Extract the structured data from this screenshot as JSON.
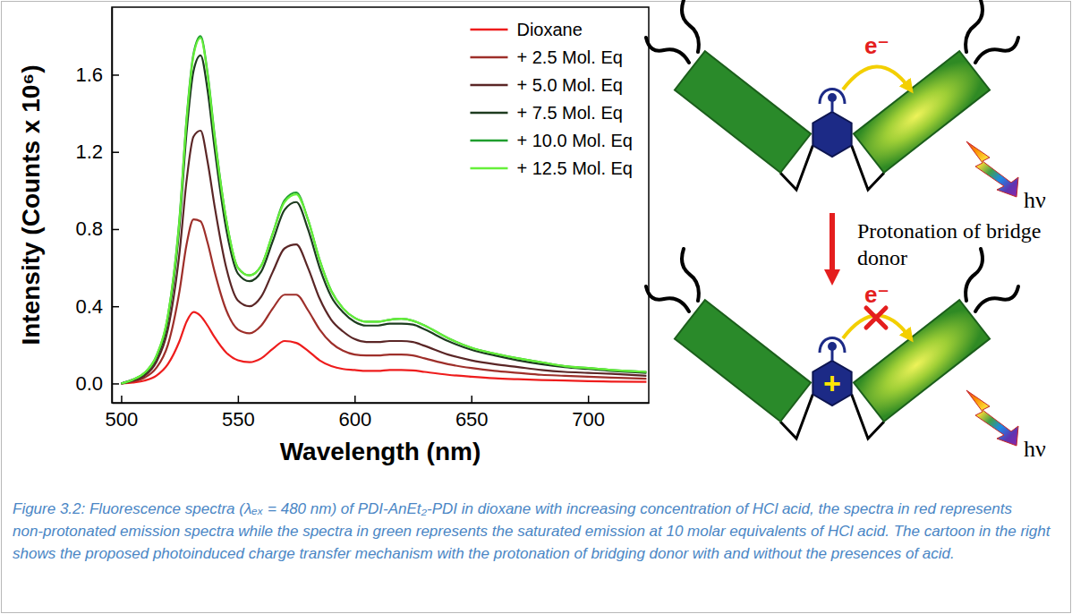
{
  "chart_data": {
    "type": "line",
    "x_label": "Wavelength (nm)",
    "y_label": "Intensity (Counts x 10⁶)",
    "xlim": [
      496,
      726
    ],
    "xticks": [
      500,
      550,
      600,
      650,
      700
    ],
    "ylim": [
      -0.1,
      1.95
    ],
    "yticks": [
      {
        "value": 0,
        "label": "0.0"
      },
      {
        "value": 0.4,
        "label": "0.4"
      },
      {
        "value": 0.8,
        "label": "0.8"
      },
      {
        "value": 1.2,
        "label": "1.2"
      },
      {
        "value": 1.6,
        "label": "1.6"
      }
    ],
    "legend": "upper right",
    "x": [
      500,
      505,
      510,
      515,
      520,
      525,
      528,
      531,
      534,
      537,
      540,
      545,
      550,
      555,
      560,
      565,
      570,
      575,
      580,
      585,
      590,
      595,
      600,
      605,
      610,
      615,
      620,
      625,
      630,
      640,
      650,
      660,
      670,
      680,
      690,
      700,
      710,
      725
    ],
    "series": [
      {
        "name": "Dioxane",
        "color": "#ee1c1c",
        "values": [
          0.0,
          0.005,
          0.015,
          0.04,
          0.1,
          0.22,
          0.32,
          0.37,
          0.35,
          0.3,
          0.24,
          0.16,
          0.12,
          0.11,
          0.13,
          0.18,
          0.22,
          0.21,
          0.17,
          0.12,
          0.09,
          0.075,
          0.07,
          0.065,
          0.065,
          0.07,
          0.07,
          0.068,
          0.06,
          0.045,
          0.035,
          0.027,
          0.022,
          0.018,
          0.015,
          0.012,
          0.01,
          0.008
        ]
      },
      {
        "name": "+ 2.5 Mol. Eq",
        "color": "#9e2f2a",
        "values": [
          0.0,
          0.01,
          0.03,
          0.08,
          0.2,
          0.48,
          0.72,
          0.85,
          0.84,
          0.73,
          0.58,
          0.38,
          0.28,
          0.26,
          0.3,
          0.39,
          0.46,
          0.46,
          0.38,
          0.28,
          0.21,
          0.17,
          0.15,
          0.145,
          0.145,
          0.15,
          0.15,
          0.145,
          0.13,
          0.1,
          0.08,
          0.065,
          0.055,
          0.045,
          0.04,
          0.035,
          0.03,
          0.025
        ]
      },
      {
        "name": "+ 5.0 Mol. Eq",
        "color": "#5a2626",
        "values": [
          0.0,
          0.015,
          0.04,
          0.11,
          0.28,
          0.68,
          1.05,
          1.28,
          1.31,
          1.15,
          0.92,
          0.6,
          0.43,
          0.4,
          0.45,
          0.58,
          0.7,
          0.72,
          0.6,
          0.44,
          0.33,
          0.27,
          0.23,
          0.215,
          0.215,
          0.22,
          0.22,
          0.215,
          0.195,
          0.15,
          0.12,
          0.1,
          0.085,
          0.07,
          0.06,
          0.055,
          0.05,
          0.04
        ]
      },
      {
        "name": "+ 7.5 Mol. Eq",
        "color": "#1d3b1f",
        "values": [
          0.0,
          0.02,
          0.05,
          0.13,
          0.33,
          0.82,
          1.3,
          1.62,
          1.7,
          1.52,
          1.22,
          0.8,
          0.57,
          0.53,
          0.58,
          0.74,
          0.9,
          0.94,
          0.8,
          0.6,
          0.45,
          0.37,
          0.32,
          0.3,
          0.3,
          0.31,
          0.31,
          0.305,
          0.28,
          0.22,
          0.175,
          0.145,
          0.12,
          0.1,
          0.085,
          0.075,
          0.065,
          0.055
        ]
      },
      {
        "name": "+ 10.0 Mol. Eq",
        "color": "#1f9e2e",
        "values": [
          0.0,
          0.02,
          0.055,
          0.14,
          0.35,
          0.86,
          1.37,
          1.71,
          1.8,
          1.61,
          1.29,
          0.85,
          0.6,
          0.56,
          0.61,
          0.78,
          0.95,
          0.99,
          0.85,
          0.64,
          0.48,
          0.39,
          0.34,
          0.32,
          0.32,
          0.33,
          0.335,
          0.325,
          0.3,
          0.235,
          0.185,
          0.155,
          0.13,
          0.11,
          0.09,
          0.08,
          0.07,
          0.06
        ]
      },
      {
        "name": "+ 12.5 Mol. Eq",
        "color": "#66f03a",
        "values": [
          0.0,
          0.02,
          0.055,
          0.14,
          0.35,
          0.85,
          1.36,
          1.7,
          1.79,
          1.6,
          1.28,
          0.85,
          0.6,
          0.56,
          0.61,
          0.78,
          0.94,
          0.98,
          0.85,
          0.64,
          0.48,
          0.39,
          0.34,
          0.32,
          0.32,
          0.33,
          0.335,
          0.325,
          0.3,
          0.235,
          0.185,
          0.155,
          0.13,
          0.11,
          0.09,
          0.08,
          0.07,
          0.06
        ]
      }
    ]
  },
  "diagram": {
    "electron_label": "e⁻",
    "photon_label": "hν",
    "charge_label": "+",
    "arrow_label": "Protonation of bridge donor"
  },
  "caption": "Figure 3.2: Fluorescence spectra (λₑₓ = 480 nm) of PDI-AnEt₂-PDI in dioxane with increasing concentration of HCl acid, the spectra in red represents non-protonated emission spectra while the spectra in green represents the saturated emission at 10 molar equivalents of HCl acid. The cartoon in the right shows the proposed photoinduced charge transfer mechanism with the protonation of bridging donor with and without the presences of acid."
}
